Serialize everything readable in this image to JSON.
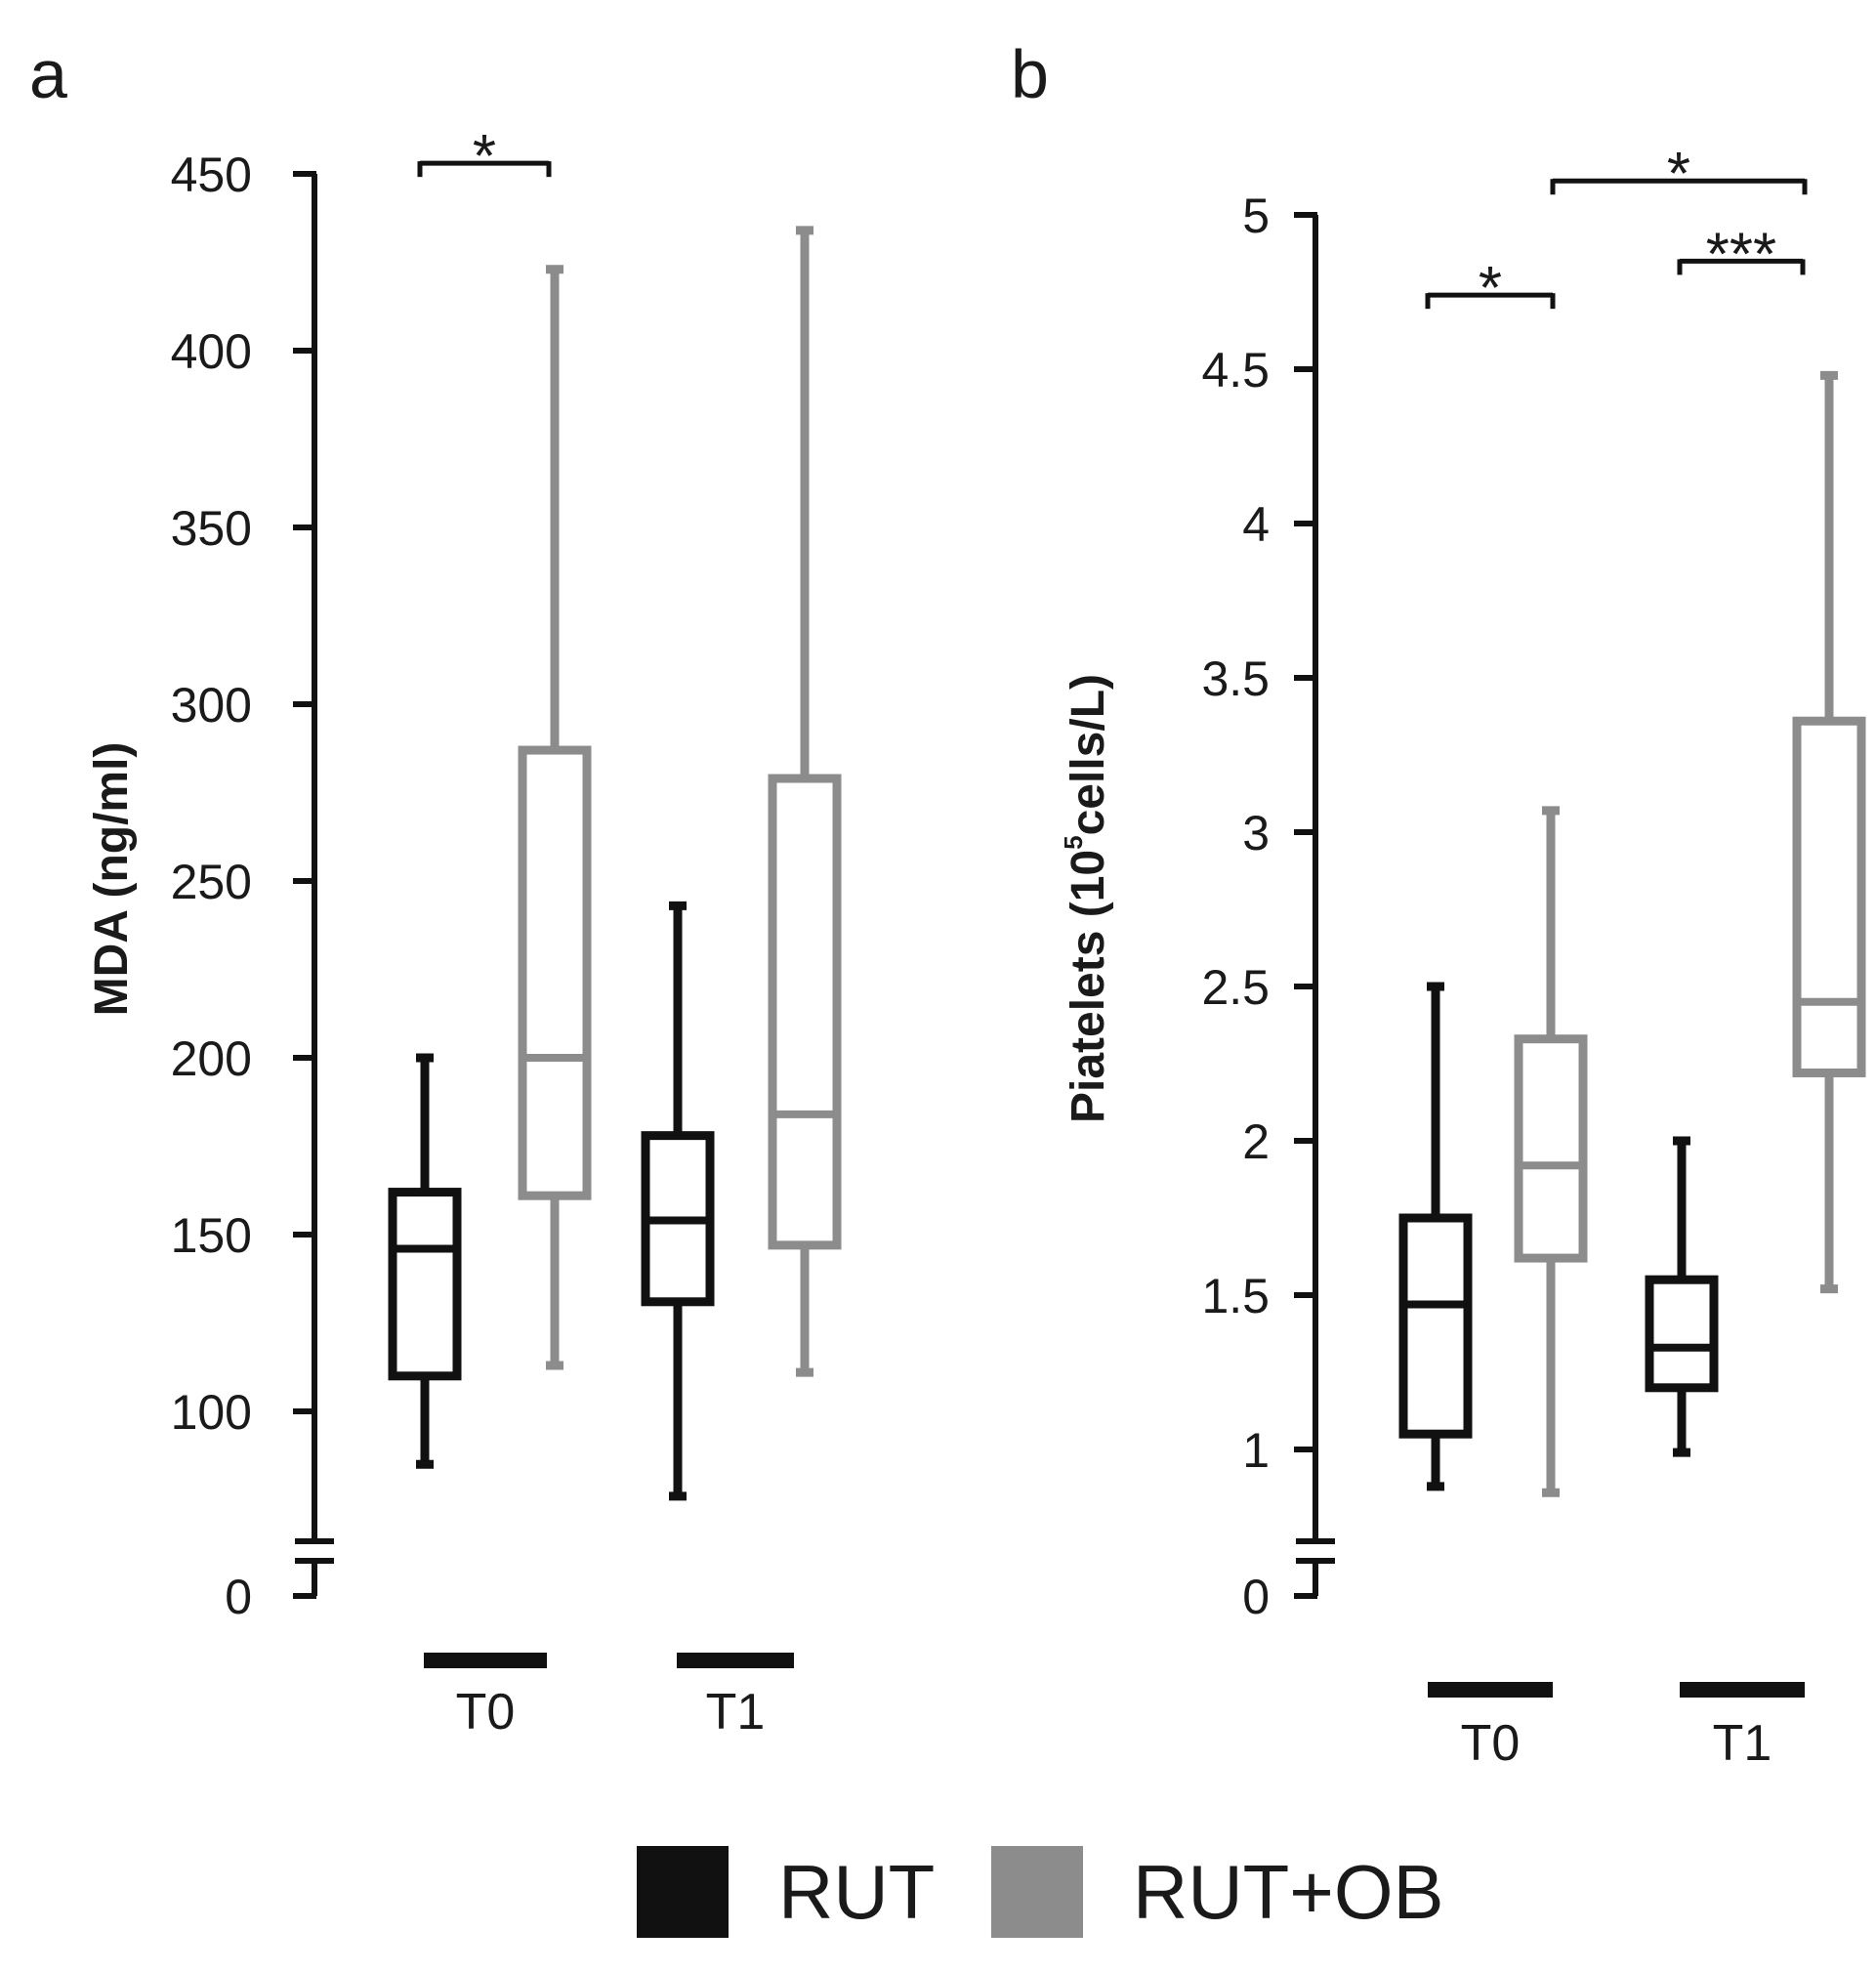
{
  "colors": {
    "rut": "#111111",
    "rut_ob": "#8c8c8c",
    "text": "#1a1a1a"
  },
  "legend": [
    {
      "label": "RUT",
      "color": "#111111"
    },
    {
      "label": "RUT+OB",
      "color": "#8c8c8c"
    }
  ],
  "chart_data": [
    {
      "type": "box",
      "panel_label": "a",
      "ylabel": "MDA (ng/ml)",
      "ylim": [
        0,
        450
      ],
      "axis_break": true,
      "yticks": [
        0,
        100,
        150,
        200,
        250,
        300,
        350,
        400,
        450
      ],
      "groups": [
        "T0",
        "T1"
      ],
      "series": [
        {
          "name": "RUT",
          "boxes": [
            {
              "group": "T0",
              "min": 85,
              "q1": 110,
              "median": 146,
              "q3": 162,
              "max": 200
            },
            {
              "group": "T1",
              "min": 76,
              "q1": 131,
              "median": 154,
              "q3": 178,
              "max": 243
            }
          ]
        },
        {
          "name": "RUT+OB",
          "boxes": [
            {
              "group": "T0",
              "min": 113,
              "q1": 161,
              "median": 200,
              "q3": 287,
              "max": 423
            },
            {
              "group": "T1",
              "min": 111,
              "q1": 147,
              "median": 184,
              "q3": 279,
              "max": 434
            }
          ]
        }
      ],
      "significance": [
        {
          "label": "*",
          "group": "T0",
          "from": "RUT",
          "to": "RUT+OB",
          "y": 453
        }
      ]
    },
    {
      "type": "box",
      "panel_label": "b",
      "ylabel": "Piatelets (10",
      "ylabel_sup": "5",
      "ylabel_tail": "cells/L)",
      "ylim": [
        0,
        5
      ],
      "axis_break": true,
      "yticks": [
        0,
        1,
        1.5,
        2,
        2.5,
        3,
        3.5,
        4,
        4.5,
        5
      ],
      "groups": [
        "T0",
        "T1"
      ],
      "series": [
        {
          "name": "RUT",
          "boxes": [
            {
              "group": "T0",
              "min": 0.88,
              "q1": 1.05,
              "median": 1.47,
              "q3": 1.75,
              "max": 2.5
            },
            {
              "group": "T1",
              "min": 0.99,
              "q1": 1.2,
              "median": 1.33,
              "q3": 1.55,
              "max": 2.0
            }
          ]
        },
        {
          "name": "RUT+OB",
          "boxes": [
            {
              "group": "T0",
              "min": 0.86,
              "q1": 1.62,
              "median": 1.92,
              "q3": 2.33,
              "max": 3.07
            },
            {
              "group": "T1",
              "min": 1.52,
              "q1": 2.22,
              "median": 2.45,
              "q3": 3.36,
              "max": 4.48
            }
          ]
        }
      ],
      "significance": [
        {
          "label": "*",
          "group": "T0",
          "from": "RUT",
          "to": "RUT+OB",
          "y": 4.74
        },
        {
          "label": "***",
          "group": "T1",
          "from": "RUT",
          "to": "RUT+OB",
          "y": 4.85
        },
        {
          "label": "*",
          "group": "T0-T1",
          "from": "RUT+OB T0",
          "to": "RUT+OB T1",
          "y": 5.11
        }
      ]
    }
  ]
}
